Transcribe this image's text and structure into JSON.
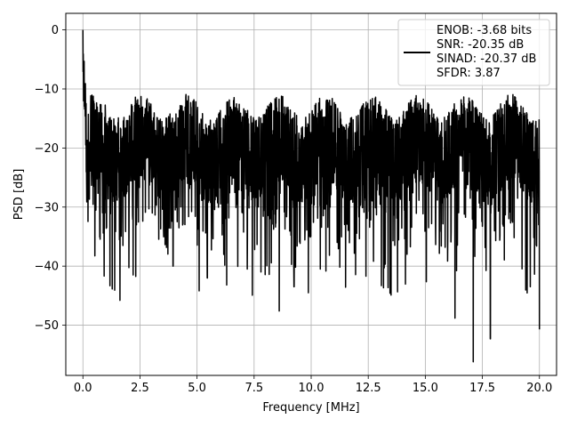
{
  "chart_data": {
    "type": "line",
    "xlabel": "Frequency [MHz]",
    "ylabel": "PSD [dB]",
    "xlim": [
      -0.75,
      20.75
    ],
    "ylim": [
      -58.5,
      2.8
    ],
    "x_ticks": [
      0.0,
      2.5,
      5.0,
      7.5,
      10.0,
      12.5,
      15.0,
      17.5,
      20.0
    ],
    "x_tick_labels": [
      "0.0",
      "2.5",
      "5.0",
      "7.5",
      "10.0",
      "12.5",
      "15.0",
      "17.5",
      "20.0"
    ],
    "y_ticks": [
      0,
      -10,
      -20,
      -30,
      -40,
      -50
    ],
    "y_tick_labels": [
      "0",
      "−10",
      "−20",
      "−30",
      "−40",
      "−50"
    ],
    "grid": true,
    "legend_position": "top-right",
    "series": [
      {
        "name": "ENOB: -3.68 bits\nSNR: -20.35 dB\nSINAD: -20.37 dB\nSFDR: 3.87",
        "legend_lines": [
          "ENOB: -3.68 bits",
          "SNR: -20.35 dB",
          "SINAD: -20.37 dB",
          "SFDR: 3.87"
        ],
        "color": "#000000",
        "x_range": [
          0.0,
          20.0
        ],
        "noise_floor_db": -20.35,
        "peak": {
          "x": 0.0,
          "y": 0.0
        },
        "notable_minima": [
          {
            "x": 1.62,
            "y": -45.8
          },
          {
            "x": 2.2,
            "y": -41.5
          },
          {
            "x": 3.95,
            "y": -40.0
          },
          {
            "x": 5.45,
            "y": -42.0
          },
          {
            "x": 6.3,
            "y": -43.2
          },
          {
            "x": 7.2,
            "y": -40.5
          },
          {
            "x": 7.8,
            "y": -41.0
          },
          {
            "x": 8.6,
            "y": -47.6
          },
          {
            "x": 9.25,
            "y": -43.5
          },
          {
            "x": 10.4,
            "y": -40.5
          },
          {
            "x": 12.4,
            "y": -41.7
          },
          {
            "x": 14.2,
            "y": -38.0
          },
          {
            "x": 16.3,
            "y": -48.8
          },
          {
            "x": 17.1,
            "y": -56.2
          },
          {
            "x": 17.85,
            "y": -52.3
          },
          {
            "x": 19.6,
            "y": -43.5
          },
          {
            "x": 20.0,
            "y": -50.7
          }
        ]
      }
    ]
  }
}
